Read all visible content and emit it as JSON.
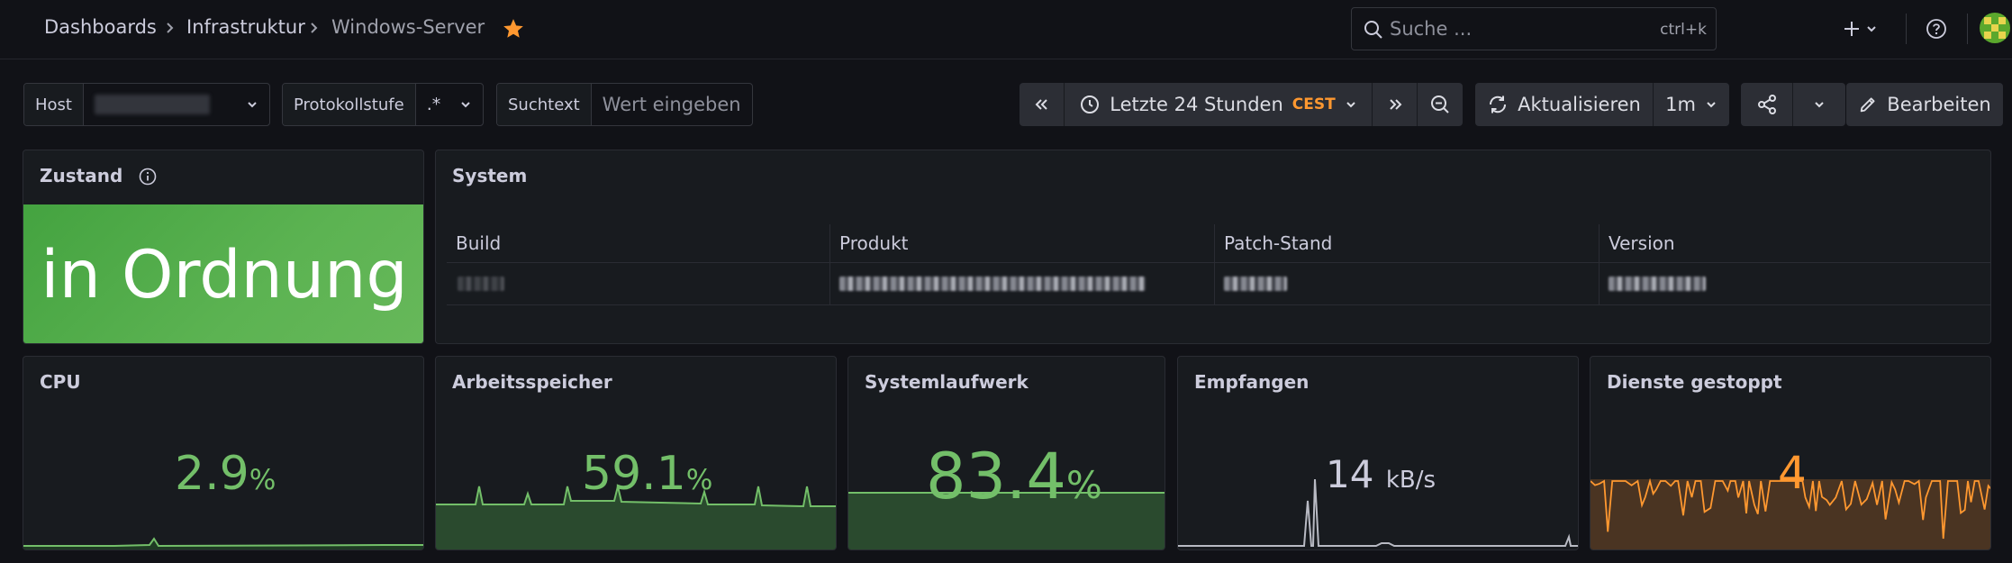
{
  "nav": {
    "breadcrumbs": [
      "Dashboards",
      "Infrastruktur",
      "Windows-Server"
    ],
    "search_placeholder": "Suche ...",
    "search_shortcut": "ctrl+k"
  },
  "variables": {
    "host_label": "Host",
    "protokoll_label": "Protokollstufe",
    "protokoll_value": ".*",
    "suchtext_label": "Suchtext",
    "suchtext_placeholder": "Wert eingeben"
  },
  "timepicker": {
    "range": "Letzte 24 Stunden",
    "timezone": "CEST"
  },
  "refresh": {
    "label": "Aktualisieren",
    "interval": "1m"
  },
  "edit_label": "Bearbeiten",
  "panels": {
    "zustand": {
      "title": "Zustand",
      "value": "in Ordnung",
      "color": "#56a64b"
    },
    "system": {
      "title": "System",
      "columns": [
        "Build",
        "Produkt",
        "Patch-Stand",
        "Version"
      ]
    },
    "cpu": {
      "title": "CPU",
      "value": "2.9",
      "unit": "%",
      "color": "#73bf69"
    },
    "memory": {
      "title": "Arbeitsspeicher",
      "value": "59.1",
      "unit": "%",
      "color": "#73bf69",
      "fill_fraction": 0.591
    },
    "disk": {
      "title": "Systemlaufwerk",
      "value": "83.4",
      "unit": "%",
      "color": "#73bf69",
      "fill_fraction": 0.834
    },
    "network": {
      "title": "Empfangen",
      "value": "14",
      "unit": "kB/s",
      "color": "#ccccdc"
    },
    "services": {
      "title": "Dienste gestoppt",
      "value": "4",
      "color": "#ff9830"
    }
  }
}
